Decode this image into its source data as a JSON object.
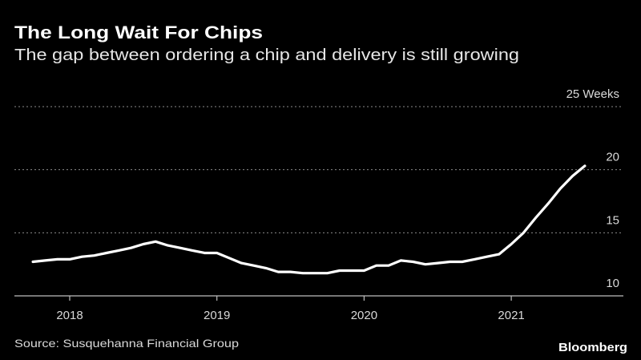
{
  "chart_data": {
    "type": "line",
    "title": "The Long Wait For Chips",
    "subtitle": "The gap between ordering a chip and delivery is still growing",
    "ylabel": "",
    "xlabel": "",
    "y_unit_label": "25 Weeks",
    "ylim": [
      10,
      25
    ],
    "yticks": [
      10,
      15,
      20,
      25
    ],
    "ytick_labels": [
      "10",
      "15",
      "20",
      "25 Weeks"
    ],
    "xticks": [
      "2018",
      "2019",
      "2020",
      "2021"
    ],
    "grid": "horizontal dotted",
    "line_color": "#ffffff",
    "background": "#000000",
    "x": [
      "2017-10",
      "2017-11",
      "2017-12",
      "2018-01",
      "2018-02",
      "2018-03",
      "2018-04",
      "2018-05",
      "2018-06",
      "2018-07",
      "2018-08",
      "2018-09",
      "2018-10",
      "2018-11",
      "2018-12",
      "2019-01",
      "2019-02",
      "2019-03",
      "2019-04",
      "2019-05",
      "2019-06",
      "2019-07",
      "2019-08",
      "2019-09",
      "2019-10",
      "2019-11",
      "2019-12",
      "2020-01",
      "2020-02",
      "2020-03",
      "2020-04",
      "2020-05",
      "2020-06",
      "2020-07",
      "2020-08",
      "2020-09",
      "2020-10",
      "2020-11",
      "2020-12",
      "2021-01",
      "2021-02",
      "2021-03",
      "2021-04",
      "2021-05",
      "2021-06",
      "2021-07"
    ],
    "values": [
      12.7,
      12.8,
      12.9,
      12.9,
      13.1,
      13.2,
      13.4,
      13.6,
      13.8,
      14.1,
      14.3,
      14.0,
      13.8,
      13.6,
      13.4,
      13.4,
      13.0,
      12.6,
      12.4,
      12.2,
      11.9,
      11.9,
      11.8,
      11.8,
      11.8,
      12.0,
      12.0,
      12.0,
      12.4,
      12.4,
      12.8,
      12.7,
      12.5,
      12.6,
      12.7,
      12.7,
      12.9,
      13.1,
      13.3,
      14.1,
      15.0,
      16.2,
      17.3,
      18.5,
      19.5,
      20.3
    ]
  },
  "footer": {
    "source": "Source: Susquehanna Financial Group",
    "logo": "Bloomberg"
  }
}
